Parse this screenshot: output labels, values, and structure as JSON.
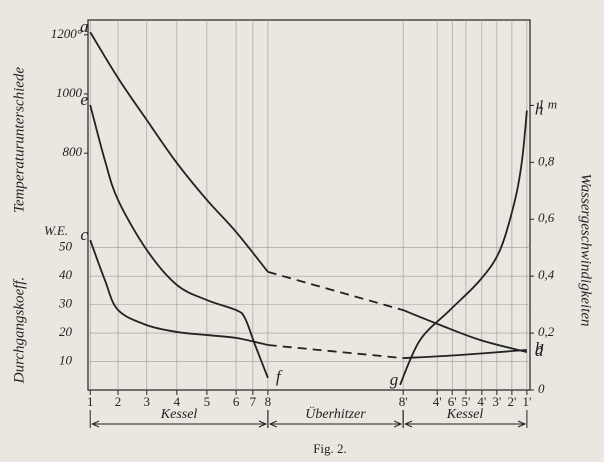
{
  "chart_data": {
    "type": "line",
    "caption": "Fig. 2.",
    "ylabel": "Temperaturunterschiede",
    "y3label": "Durchgangskoeff.",
    "y3unit": "W.E.",
    "y2label": "Wassergeschwindigkeiten",
    "xlim": [
      0,
      100
    ],
    "xticks": [
      {
        "value": 0.5,
        "label": "1"
      },
      {
        "value": 6.8,
        "label": "2"
      },
      {
        "value": 13.3,
        "label": "3"
      },
      {
        "value": 20.1,
        "label": "4"
      },
      {
        "value": 26.9,
        "label": "5"
      },
      {
        "value": 33.5,
        "label": "6"
      },
      {
        "value": 37.3,
        "label": "7"
      },
      {
        "value": 40.7,
        "label": "8"
      },
      {
        "value": 71.3,
        "label": "8'"
      },
      {
        "value": 79,
        "label": "4'"
      },
      {
        "value": 82.4,
        "label": "6'"
      },
      {
        "value": 85.5,
        "label": "5'"
      },
      {
        "value": 89.1,
        "label": "4'"
      },
      {
        "value": 92.5,
        "label": "3'"
      },
      {
        "value": 95.9,
        "label": "2'"
      },
      {
        "value": 99.3,
        "label": "1'"
      }
    ],
    "ylim": [
      0,
      1250
    ],
    "yticks": [
      {
        "value": 1200,
        "label": "1200°"
      },
      1000,
      800
    ],
    "y3lim": [
      0,
      130
    ],
    "y3ticks": [
      50,
      40,
      30,
      20,
      10
    ],
    "y2lim": [
      0,
      1.3
    ],
    "y2ticks": [
      {
        "value": 1,
        "label": "1 m"
      },
      {
        "value": 0.8,
        "label": "0,8"
      },
      {
        "value": 0.6,
        "label": "0,6"
      },
      {
        "value": 0.4,
        "label": "0,4"
      },
      {
        "value": 0.2,
        "label": "0,2"
      },
      0
    ],
    "grid": true,
    "sections": [
      {
        "label": "Kessel",
        "from": 0.5,
        "to": 40.7
      },
      {
        "label": "Überhitzer",
        "from": 40.7,
        "to": 71.3
      },
      {
        "label": "Kessel",
        "from": 71.3,
        "to": 99.3
      }
    ],
    "series": [
      {
        "name": "a",
        "label_at": "start",
        "axis": "y",
        "style": "solid",
        "color": "#222",
        "x": [
          0.5,
          6.8,
          13.3,
          20.1,
          26.9,
          33.5,
          40.7
        ],
        "values": [
          1209,
          1054,
          912,
          767,
          642,
          534,
          399
        ]
      },
      {
        "axis": "y",
        "style": "dashed",
        "color": "#222",
        "x": [
          40.7,
          71.3
        ],
        "values": [
          399,
          270
        ]
      },
      {
        "name": "d",
        "label_at": "end",
        "axis": "y",
        "style": "solid",
        "color": "#222",
        "x": [
          71.3,
          79.6,
          88.7,
          99.3
        ],
        "values": [
          270,
          220,
          169,
          128
        ]
      },
      {
        "name": "e",
        "label_at": "start",
        "axis": "y",
        "style": "solid",
        "color": "#222",
        "x": [
          0.5,
          3.8,
          6.8,
          13.3,
          20.1,
          26.9,
          33.5,
          35.5,
          37.8,
          40.7
        ],
        "values": [
          963,
          777,
          642,
          473,
          355,
          304,
          270,
          243,
          152,
          41
        ]
      },
      {
        "name": "f",
        "label_at": "end",
        "axis": "y",
        "style": "none",
        "color": "#222",
        "x": [
          40.7
        ],
        "values": [
          41
        ]
      },
      {
        "name": "c",
        "label_at": "start",
        "axis": "y3",
        "style": "solid",
        "color": "#222",
        "x": [
          0.5,
          3.8,
          6.8,
          13.3,
          20.1,
          26.9,
          33.5,
          40.7
        ],
        "values": [
          52.7,
          38.7,
          28.1,
          22.8,
          20.4,
          19.3,
          18.3,
          15.8
        ]
      },
      {
        "axis": "y3",
        "style": "dashed",
        "color": "#222",
        "x": [
          40.7,
          71.3
        ],
        "values": [
          15.8,
          11.2
        ]
      },
      {
        "name": "b",
        "label_at": "end",
        "axis": "y3",
        "style": "solid",
        "color": "#222",
        "x": [
          71.3,
          84.2,
          99.3
        ],
        "values": [
          11.2,
          12.3,
          14.1
        ]
      },
      {
        "name": "g",
        "label_at": "start",
        "axis": "y2",
        "style": "solid",
        "color": "#222",
        "x": [
          70.6,
          75.1,
          81.9,
          88.7,
          93.2,
          96.6,
          98.2,
          99.3
        ],
        "values": [
          0.018,
          0.175,
          0.281,
          0.386,
          0.491,
          0.667,
          0.807,
          0.982
        ]
      },
      {
        "name": "h",
        "label_at": "end",
        "axis": "y2",
        "style": "none",
        "color": "#222",
        "x": [
          99.3
        ],
        "values": [
          0.982
        ]
      }
    ]
  }
}
